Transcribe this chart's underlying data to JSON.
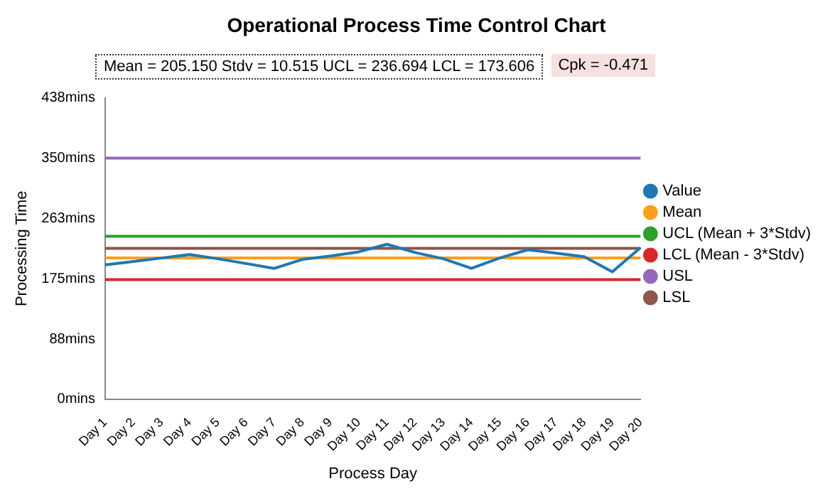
{
  "chart_data": {
    "type": "line",
    "title": "Operational Process Time Control Chart",
    "xlabel": "Process Day",
    "ylabel": "Processing Time",
    "categories": [
      "Day 1",
      "Day 2",
      "Day 3",
      "Day 4",
      "Day 5",
      "Day 6",
      "Day 7",
      "Day 8",
      "Day 9",
      "Day 10",
      "Day 11",
      "Day 12",
      "Day 13",
      "Day 14",
      "Day 15",
      "Day 16",
      "Day 17",
      "Day 18",
      "Day 19",
      "Day 20"
    ],
    "series": [
      {
        "name": "Value",
        "color": "#1f77b4",
        "values": [
          195,
          200,
          205,
          210,
          204,
          197,
          190,
          203,
          208,
          214,
          225,
          213,
          204,
          190,
          205,
          217,
          212,
          207,
          185,
          220
        ]
      },
      {
        "name": "Mean",
        "color": "#ff9f1c",
        "values": [
          205.15,
          205.15,
          205.15,
          205.15,
          205.15,
          205.15,
          205.15,
          205.15,
          205.15,
          205.15,
          205.15,
          205.15,
          205.15,
          205.15,
          205.15,
          205.15,
          205.15,
          205.15,
          205.15,
          205.15
        ]
      },
      {
        "name": "UCL (Mean + 3*Stdv)",
        "color": "#2ca02c",
        "values": [
          236.694,
          236.694,
          236.694,
          236.694,
          236.694,
          236.694,
          236.694,
          236.694,
          236.694,
          236.694,
          236.694,
          236.694,
          236.694,
          236.694,
          236.694,
          236.694,
          236.694,
          236.694,
          236.694,
          236.694
        ]
      },
      {
        "name": "LCL (Mean - 3*Stdv)",
        "color": "#d62728",
        "values": [
          173.606,
          173.606,
          173.606,
          173.606,
          173.606,
          173.606,
          173.606,
          173.606,
          173.606,
          173.606,
          173.606,
          173.606,
          173.606,
          173.606,
          173.606,
          173.606,
          173.606,
          173.606,
          173.606,
          173.606
        ]
      },
      {
        "name": "USL",
        "color": "#9467bd",
        "values": [
          350,
          350,
          350,
          350,
          350,
          350,
          350,
          350,
          350,
          350,
          350,
          350,
          350,
          350,
          350,
          350,
          350,
          350,
          350,
          350
        ]
      },
      {
        "name": "LSL",
        "color": "#8c564b",
        "values": [
          219,
          219,
          219,
          219,
          219,
          219,
          219,
          219,
          219,
          219,
          219,
          219,
          219,
          219,
          219,
          219,
          219,
          219,
          219,
          219
        ]
      }
    ],
    "ylim": [
      0,
      437.5
    ],
    "yticks": [
      {
        "value": 0,
        "label": "0mins"
      },
      {
        "value": 87.5,
        "label": "88mins"
      },
      {
        "value": 175,
        "label": "175mins"
      },
      {
        "value": 262.5,
        "label": "263mins"
      },
      {
        "value": 350,
        "label": "350mins"
      },
      {
        "value": 437.5,
        "label": "438mins"
      }
    ],
    "grid": false,
    "legend": "right",
    "marker": "none",
    "line_style": "solid",
    "annotations": [
      "Mean = 205.150  Stdv = 10.515  UCL = 236.694  LCL = 173.606",
      "Cpk = -0.471"
    ]
  }
}
